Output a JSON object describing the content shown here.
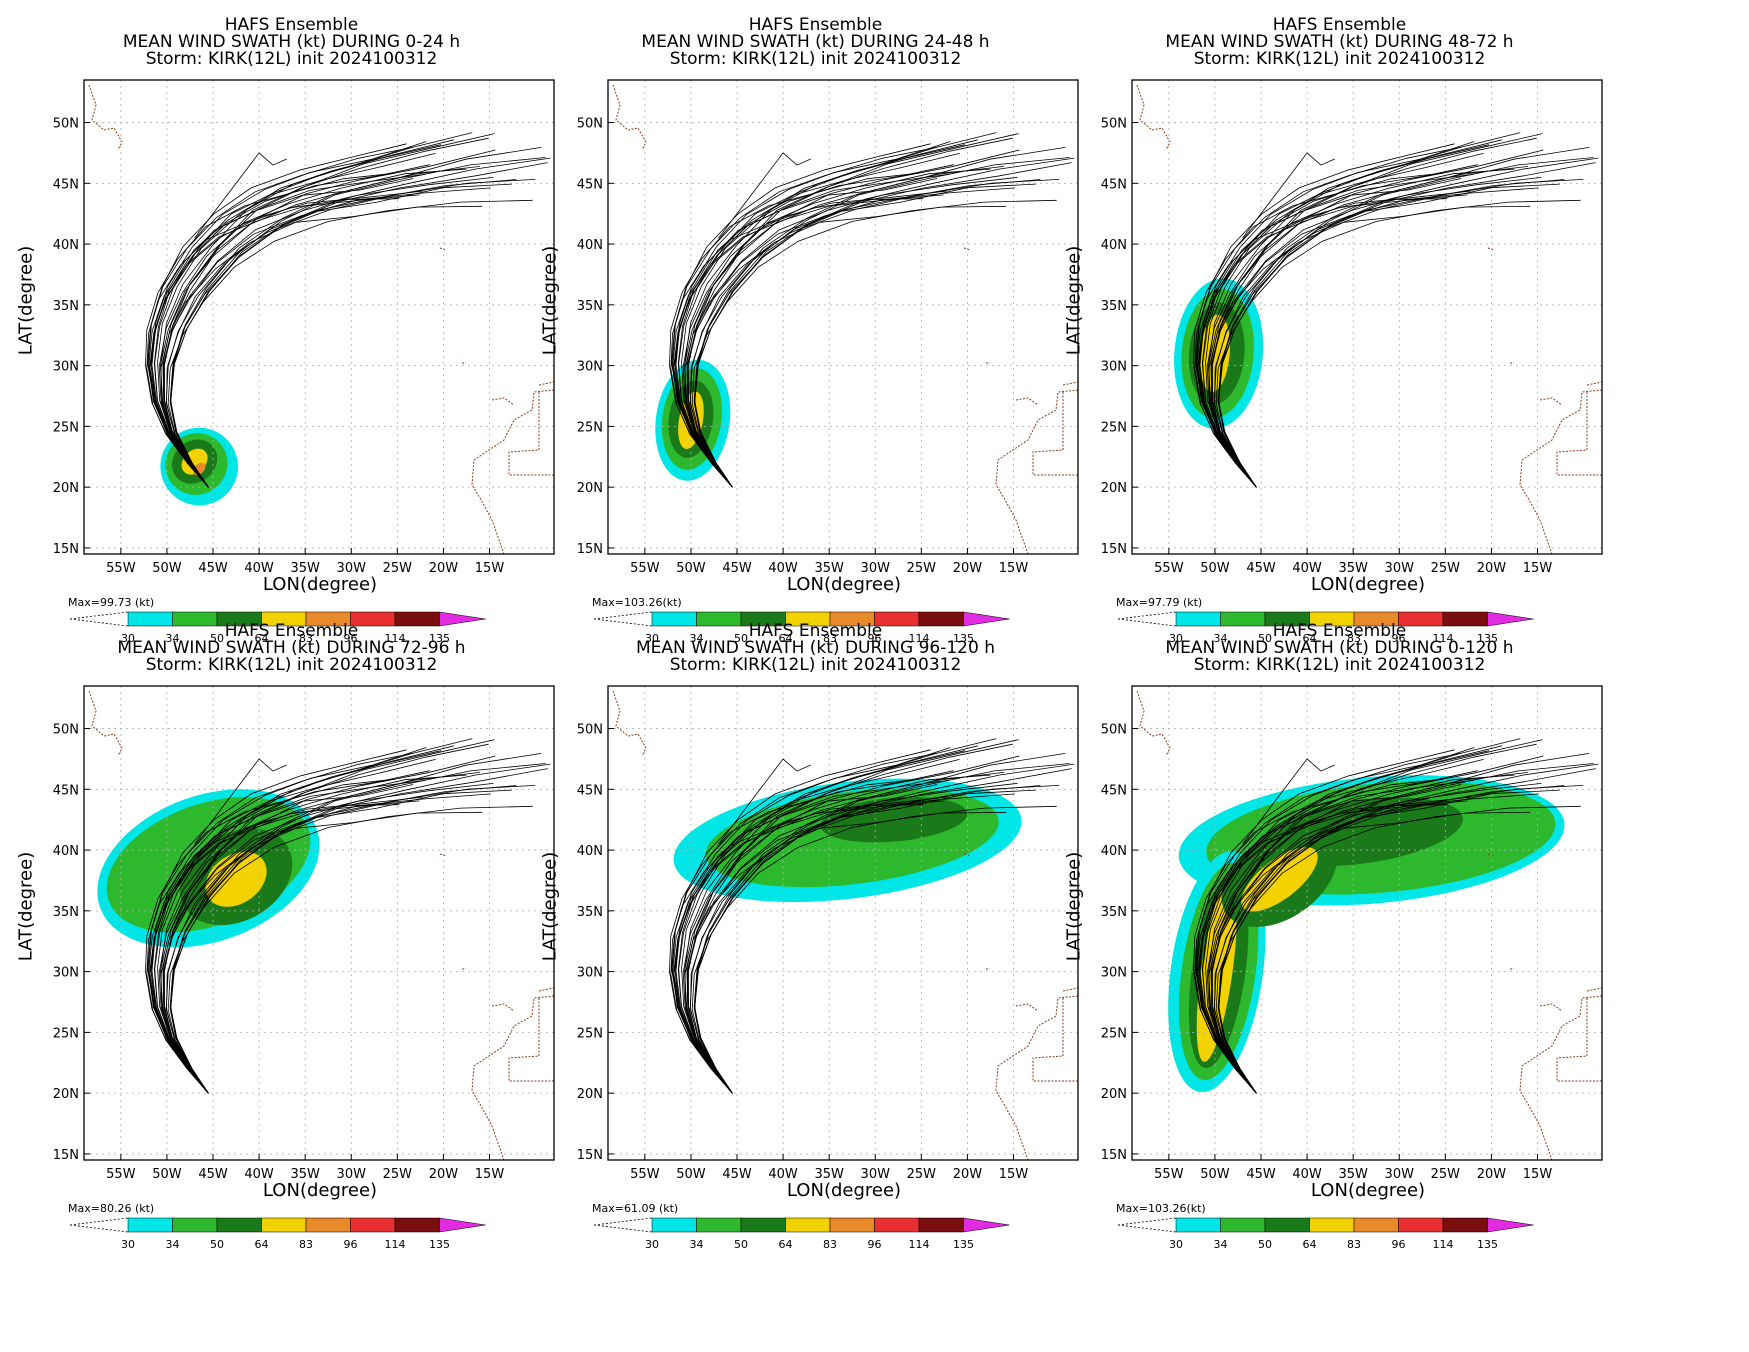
{
  "layout": {
    "grid": "2 rows x 3 columns of map panels"
  },
  "common": {
    "title_line1": "HAFS Ensemble",
    "title_line3": "Storm: KIRK(12L) init 2024100312",
    "xlabel": "LON(degree)",
    "ylabel": "LAT(degree)",
    "lon_ticks": [
      "55W",
      "50W",
      "45W",
      "40W",
      "35W",
      "30W",
      "25W",
      "20W",
      "15W"
    ],
    "lat_ticks": [
      "50N",
      "45N",
      "40N",
      "35N",
      "30N",
      "25N",
      "20N",
      "15N"
    ],
    "colorbar": {
      "levels": [
        "30",
        "34",
        "50",
        "64",
        "83",
        "96",
        "114",
        "135"
      ],
      "colors": [
        "#00e5e5",
        "#2db82d",
        "#1a7a1a",
        "#f2d200",
        "#e8892a",
        "#e83030",
        "#7a0d0d",
        "#e22ce2"
      ]
    }
  },
  "panels": [
    {
      "title_line2": "MEAN WIND SWATH (kt) DURING  0-24 h",
      "max_label": "Max=99.73 (kt)"
    },
    {
      "title_line2": "MEAN WIND SWATH (kt) DURING 24-48 h",
      "max_label": "Max=103.26(kt)"
    },
    {
      "title_line2": "MEAN WIND SWATH (kt) DURING 48-72 h",
      "max_label": "Max=97.79 (kt)"
    },
    {
      "title_line2": "MEAN WIND SWATH (kt) DURING 72-96 h",
      "max_label": "Max=80.26 (kt)"
    },
    {
      "title_line2": "MEAN WIND SWATH (kt) DURING 96-120 h",
      "max_label": "Max=61.09 (kt)"
    },
    {
      "title_line2": "MEAN WIND SWATH (kt) DURING 0-120 h",
      "max_label": "Max=103.26(kt)"
    }
  ]
}
